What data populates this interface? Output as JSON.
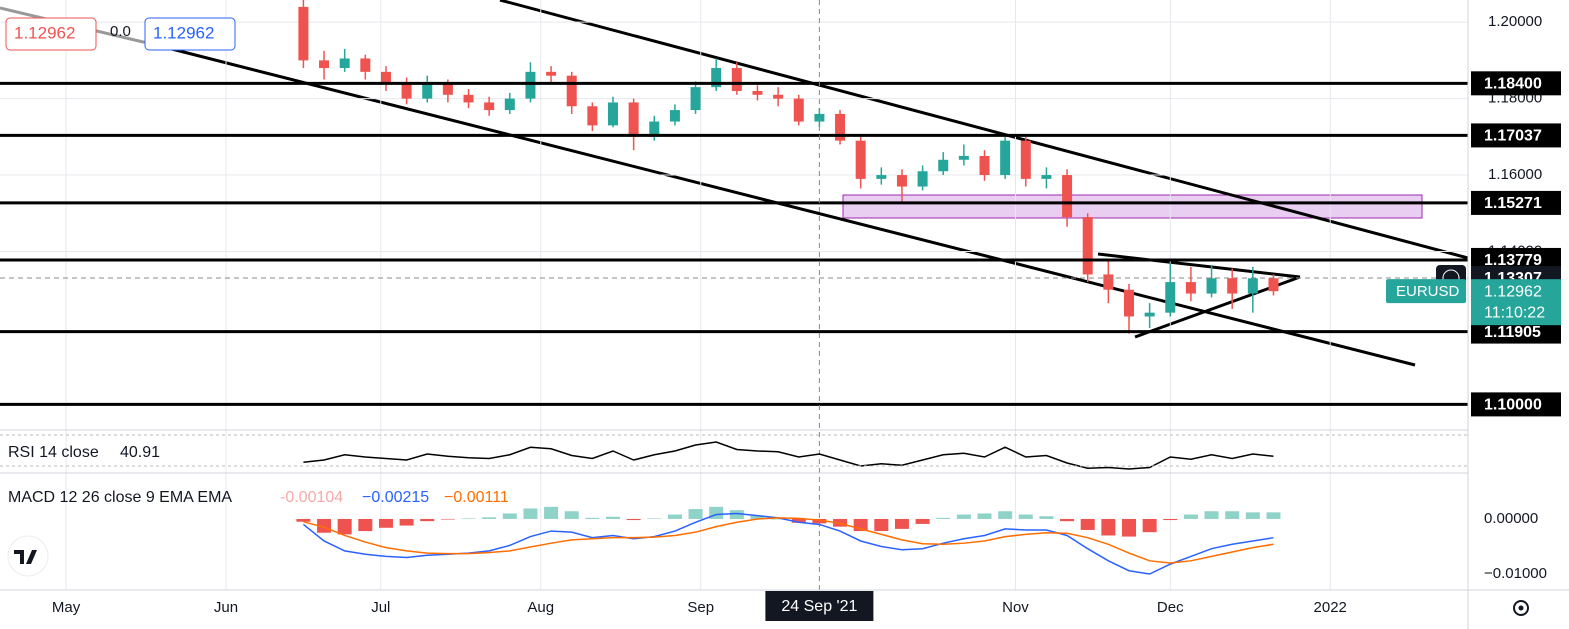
{
  "chart_data": [
    {
      "type": "candlestick",
      "quote": {
        "sell": "1.12962",
        "spread": "0.0",
        "buy": "1.12962"
      },
      "x": [
        46,
        50,
        54,
        58,
        62,
        66,
        70,
        74,
        78,
        82,
        86,
        90,
        94,
        98,
        102,
        106,
        110,
        114,
        118,
        122,
        126,
        130,
        134,
        138,
        142,
        146,
        150,
        154,
        158,
        162,
        166,
        170,
        174,
        178,
        182,
        186,
        190,
        194,
        198,
        202,
        206,
        210,
        214,
        218,
        222,
        226,
        230,
        234
      ],
      "open": [
        1.204,
        1.19,
        1.188,
        1.1905,
        1.187,
        1.184,
        1.18,
        1.184,
        1.181,
        1.179,
        1.177,
        1.18,
        1.187,
        1.186,
        1.178,
        1.173,
        1.179,
        1.17,
        1.174,
        1.177,
        1.183,
        1.188,
        1.182,
        1.181,
        1.18,
        1.174,
        1.176,
        1.169,
        1.159,
        1.16,
        1.157,
        1.161,
        1.164,
        1.165,
        1.16,
        1.169,
        1.159,
        1.16,
        1.149,
        1.134,
        1.13,
        1.123,
        1.124,
        1.132,
        1.129,
        1.133,
        1.129,
        1.133
      ],
      "high": [
        1.2058,
        1.1925,
        1.193,
        1.1915,
        1.1885,
        1.1855,
        1.186,
        1.185,
        1.1825,
        1.1805,
        1.1815,
        1.1895,
        1.1885,
        1.187,
        1.179,
        1.1805,
        1.18,
        1.1755,
        1.1785,
        1.1845,
        1.1905,
        1.1895,
        1.1835,
        1.183,
        1.181,
        1.1775,
        1.177,
        1.17,
        1.162,
        1.1615,
        1.1625,
        1.166,
        1.168,
        1.1665,
        1.17,
        1.17,
        1.162,
        1.1615,
        1.15,
        1.138,
        1.1315,
        1.1265,
        1.137,
        1.136,
        1.1365,
        1.1355,
        1.136,
        1.134
      ],
      "low": [
        1.188,
        1.185,
        1.187,
        1.185,
        1.182,
        1.1785,
        1.179,
        1.179,
        1.1775,
        1.1755,
        1.176,
        1.179,
        1.184,
        1.176,
        1.1715,
        1.1725,
        1.1665,
        1.169,
        1.173,
        1.176,
        1.182,
        1.181,
        1.1795,
        1.178,
        1.173,
        1.1725,
        1.168,
        1.1565,
        1.1575,
        1.1525,
        1.156,
        1.16,
        1.1625,
        1.1585,
        1.159,
        1.157,
        1.1565,
        1.1465,
        1.132,
        1.1265,
        1.1185,
        1.12,
        1.123,
        1.127,
        1.128,
        1.125,
        1.124,
        1.1285
      ],
      "close": [
        1.19,
        1.188,
        1.1905,
        1.187,
        1.184,
        1.18,
        1.184,
        1.181,
        1.179,
        1.177,
        1.18,
        1.187,
        1.186,
        1.178,
        1.173,
        1.179,
        1.17,
        1.174,
        1.177,
        1.183,
        1.188,
        1.182,
        1.181,
        1.18,
        1.174,
        1.176,
        1.169,
        1.159,
        1.16,
        1.157,
        1.161,
        1.164,
        1.165,
        1.16,
        1.169,
        1.159,
        1.16,
        1.149,
        1.134,
        1.13,
        1.123,
        1.124,
        1.132,
        1.129,
        1.133,
        1.129,
        1.133,
        1.12962
      ],
      "up_color": "#26a69a",
      "down_color": "#ef5350",
      "xlim": [
        -12.8,
        271.7
      ],
      "xticks": [
        {
          "value": 0,
          "label": "May"
        },
        {
          "value": 31,
          "label": "Jun"
        },
        {
          "value": 61,
          "label": "Jul"
        },
        {
          "value": 92,
          "label": "Aug"
        },
        {
          "value": 123,
          "label": "Sep"
        },
        {
          "value": 184,
          "label": "Nov"
        },
        {
          "value": 214,
          "label": "Dec"
        },
        {
          "value": 245,
          "label": "2022"
        }
      ],
      "ylim": [
        1.0933,
        1.2058
      ],
      "yticks": [
        {
          "value": 1.2,
          "label": "1.20000"
        },
        {
          "value": 1.18,
          "label": "1.18000"
        },
        {
          "value": 1.16,
          "label": "1.16000"
        },
        {
          "value": 1.14,
          "label": "1.14000"
        }
      ],
      "levels": [
        {
          "value": 1.184,
          "label": "1.18400"
        },
        {
          "value": 1.17037,
          "label": "1.17037"
        },
        {
          "value": 1.15271,
          "label": "1.15271"
        },
        {
          "value": 1.13779,
          "label": "1.13779"
        },
        {
          "value": 1.11905,
          "label": "1.11905"
        },
        {
          "value": 1.1,
          "label": "1.10000"
        }
      ],
      "crosshair": {
        "x": 146,
        "x_label": "24 Sep '21",
        "y": 1.13307,
        "y_label": "1.13307"
      },
      "last": {
        "name": "EURUSD",
        "value": 1.12962,
        "label": "1.12962",
        "countdown": "11:10:22",
        "color": "#26a69a"
      }
    },
    {
      "type": "line",
      "title": "RSI 14 close",
      "readout": "40.91",
      "color": "#000000",
      "values": [
        35,
        38,
        45,
        42,
        40,
        38,
        46,
        43,
        41,
        40,
        45,
        55,
        53,
        44,
        40,
        50,
        38,
        45,
        50,
        58,
        62,
        52,
        50,
        49,
        42,
        46,
        38,
        30,
        33,
        31,
        38,
        45,
        47,
        42,
        55,
        42,
        44,
        34,
        27,
        28,
        26,
        28,
        42,
        39,
        45,
        40,
        46,
        43
      ],
      "ylim": [
        24.7,
        75.3
      ]
    },
    {
      "type": "macd",
      "title": "MACD 12 26 close 9 EMA EMA",
      "series": [
        {
          "name": "-0.00104",
          "kind": "histogram",
          "pos_color": "#8fd3c8",
          "neg_color": "#ef5350",
          "color": "#f7a9a8",
          "values": [
            -0.0005,
            -0.0025,
            -0.0028,
            -0.0022,
            -0.0016,
            -0.0012,
            -0.0004,
            -0.0001,
            0.0001,
            0.0003,
            0.001,
            0.0019,
            0.0022,
            0.0014,
            0.0002,
            0.0004,
            -0.0002,
            0.0001,
            0.0008,
            0.0018,
            0.0022,
            0.0016,
            0.0006,
            0.0,
            -0.0007,
            -0.0008,
            -0.0014,
            -0.0022,
            -0.0022,
            -0.0018,
            -0.0009,
            0.0002,
            0.0008,
            0.001,
            0.0014,
            0.0008,
            0.0005,
            -0.0004,
            -0.002,
            -0.003,
            -0.0032,
            -0.0024,
            -0.0002,
            0.0008,
            0.0014,
            0.0014,
            0.0012,
            0.0012
          ]
        },
        {
          "name": "−0.00215",
          "kind": "line",
          "color": "#2962ff",
          "values": [
            -0.001,
            -0.004,
            -0.0058,
            -0.0064,
            -0.0068,
            -0.007,
            -0.0066,
            -0.0064,
            -0.0062,
            -0.0058,
            -0.0048,
            -0.0032,
            -0.0022,
            -0.0024,
            -0.0034,
            -0.003,
            -0.0036,
            -0.0032,
            -0.0022,
            -0.0006,
            0.0008,
            0.001,
            0.0006,
            0.0002,
            -0.0006,
            -0.001,
            -0.0022,
            -0.004,
            -0.005,
            -0.0056,
            -0.0054,
            -0.0044,
            -0.0036,
            -0.003,
            -0.0018,
            -0.002,
            -0.002,
            -0.003,
            -0.0054,
            -0.0076,
            -0.0094,
            -0.01,
            -0.0082,
            -0.0068,
            -0.0054,
            -0.0046,
            -0.004,
            -0.0034
          ]
        },
        {
          "name": "−0.00111",
          "kind": "line",
          "color": "#ff6d00",
          "values": [
            -0.0005,
            -0.0015,
            -0.003,
            -0.0042,
            -0.0052,
            -0.0058,
            -0.0062,
            -0.0063,
            -0.0063,
            -0.0061,
            -0.0058,
            -0.0051,
            -0.0044,
            -0.0038,
            -0.0036,
            -0.0034,
            -0.0034,
            -0.0033,
            -0.003,
            -0.0024,
            -0.0014,
            -0.0006,
            0.0,
            0.0002,
            0.0001,
            -0.0002,
            -0.0008,
            -0.0018,
            -0.0028,
            -0.0038,
            -0.0045,
            -0.0046,
            -0.0044,
            -0.004,
            -0.0032,
            -0.0028,
            -0.0025,
            -0.0026,
            -0.0034,
            -0.0046,
            -0.0062,
            -0.0076,
            -0.008,
            -0.0076,
            -0.0068,
            -0.006,
            -0.0052,
            -0.0046
          ]
        }
      ],
      "ylim": [
        -0.0129,
        0.0078
      ],
      "yticks": [
        {
          "value": 0,
          "label": "0.00000"
        },
        {
          "value": -0.01,
          "label": "−0.01000"
        }
      ]
    }
  ]
}
